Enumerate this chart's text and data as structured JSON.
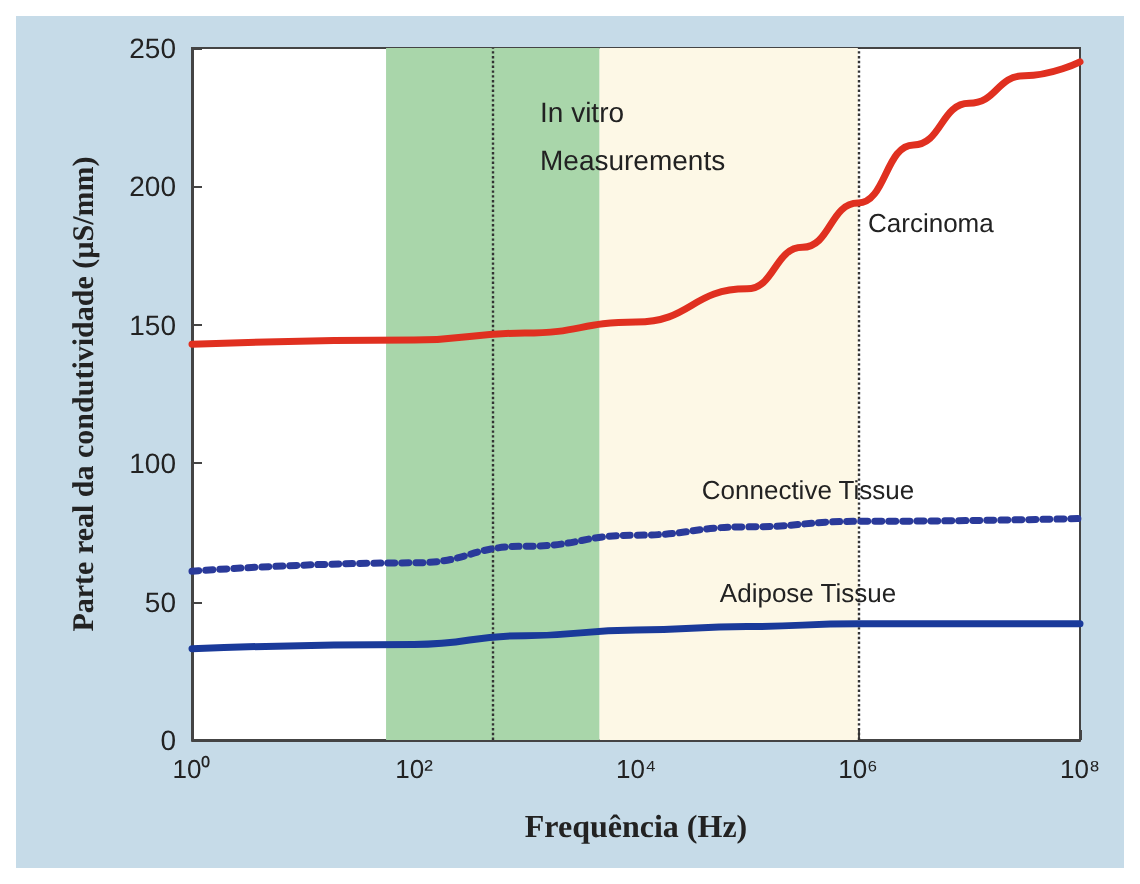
{
  "chart_data": {
    "type": "line",
    "xlabel": "Frequência (Hz)",
    "ylabel": "Parte real da condutividade (µS/mm)",
    "log": "x",
    "xlim": [
      1,
      100000000
    ],
    "xticks": [
      {
        "value": 1,
        "label": "10⁰"
      },
      {
        "value": 100,
        "label": "10²"
      },
      {
        "value": 10000,
        "label": "10⁴"
      },
      {
        "value": 1000000,
        "label": "10⁶"
      },
      {
        "value": 100000000,
        "label": "10⁸"
      }
    ],
    "ylim": [
      0,
      250
    ],
    "yticks": [
      0,
      50,
      100,
      150,
      200,
      250
    ],
    "grid": false,
    "legend": false,
    "marker": "none",
    "series": [
      {
        "name": "Carcinoma",
        "color": "#e03020",
        "line_style": "solid",
        "x": [
          1,
          100,
          1000,
          10000,
          100000,
          316228,
          1000000,
          3162278,
          10000000,
          31622777,
          100000000
        ],
        "values": [
          143,
          144.5,
          147,
          151,
          163,
          178,
          194,
          215,
          230,
          240,
          245
        ]
      },
      {
        "name": "Connective Tissue",
        "color": "#2a3a9a",
        "line_style": "dotted",
        "x": [
          1,
          100,
          1000,
          10000,
          100000,
          1000000,
          100000000
        ],
        "values": [
          61,
          64,
          70,
          74,
          77,
          79,
          80
        ]
      },
      {
        "name": "Adipose Tissue",
        "color": "#1a3a9a",
        "line_style": "solid",
        "x": [
          1,
          100,
          1000,
          10000,
          100000,
          1000000,
          100000000
        ],
        "values": [
          33,
          34.5,
          37.7,
          39.7,
          41,
          42,
          42
        ]
      }
    ],
    "bands": [
      {
        "axis": "x",
        "from": 56,
        "to": 4700,
        "color": "#a9d6aa"
      },
      {
        "axis": "x",
        "from": 4700,
        "to": 1000000,
        "color": "#fdf8e6"
      }
    ],
    "ref_lines": [
      {
        "axis": "x",
        "value": 500,
        "line_style": "dotted",
        "color": "#333333"
      },
      {
        "axis": "x",
        "value": 1000000,
        "line_style": "dotted",
        "color": "#333333"
      }
    ],
    "annotations": [
      "In vitro Measurements"
    ]
  }
}
